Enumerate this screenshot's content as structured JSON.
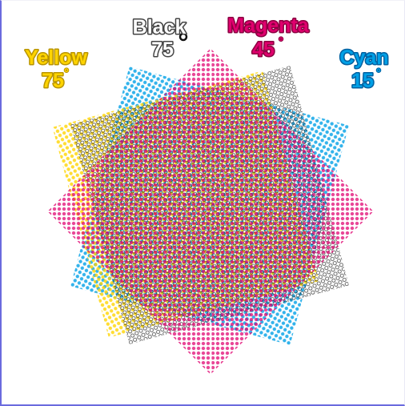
{
  "screens": {
    "yellow": {
      "name": "Yellow",
      "angle_label": "75",
      "color": "#ffd400",
      "stroke": "#b89400",
      "rotation_deg": 75
    },
    "black": {
      "name": "Black",
      "angle_label": "75",
      "color": "#1a1a1a",
      "stroke": "#444444",
      "rotation_deg": 75
    },
    "magenta": {
      "name": "Magenta",
      "angle_label": "45",
      "color": "#e0006e",
      "stroke": "#8a0040",
      "rotation_deg": 45
    },
    "cyan": {
      "name": "Cyan",
      "angle_label": "15",
      "color": "#00a0e6",
      "stroke": "#0060a0",
      "rotation_deg": 15
    }
  },
  "degree_symbol": "°"
}
